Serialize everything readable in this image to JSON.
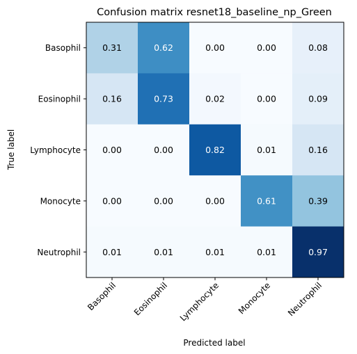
{
  "chart_data": {
    "type": "heatmap",
    "title": "Confusion matrix resnet18_baseline_np_Green",
    "xlabel": "Predicted label",
    "ylabel": "True label",
    "x_categories": [
      "Basophil",
      "Eosinophil",
      "Lymphocyte",
      "Monocyte",
      "Neutrophil"
    ],
    "y_categories": [
      "Basophil",
      "Eosinophil",
      "Lymphocyte",
      "Monocyte",
      "Neutrophil"
    ],
    "values": [
      [
        0.31,
        0.62,
        0.0,
        0.0,
        0.08
      ],
      [
        0.16,
        0.73,
        0.02,
        0.0,
        0.09
      ],
      [
        0.0,
        0.0,
        0.82,
        0.01,
        0.16
      ],
      [
        0.0,
        0.0,
        0.0,
        0.61,
        0.39
      ],
      [
        0.01,
        0.01,
        0.01,
        0.01,
        0.97
      ]
    ],
    "value_format": "0.00",
    "colormap": "Blues",
    "vmin": 0.0,
    "vmax": 0.97
  }
}
